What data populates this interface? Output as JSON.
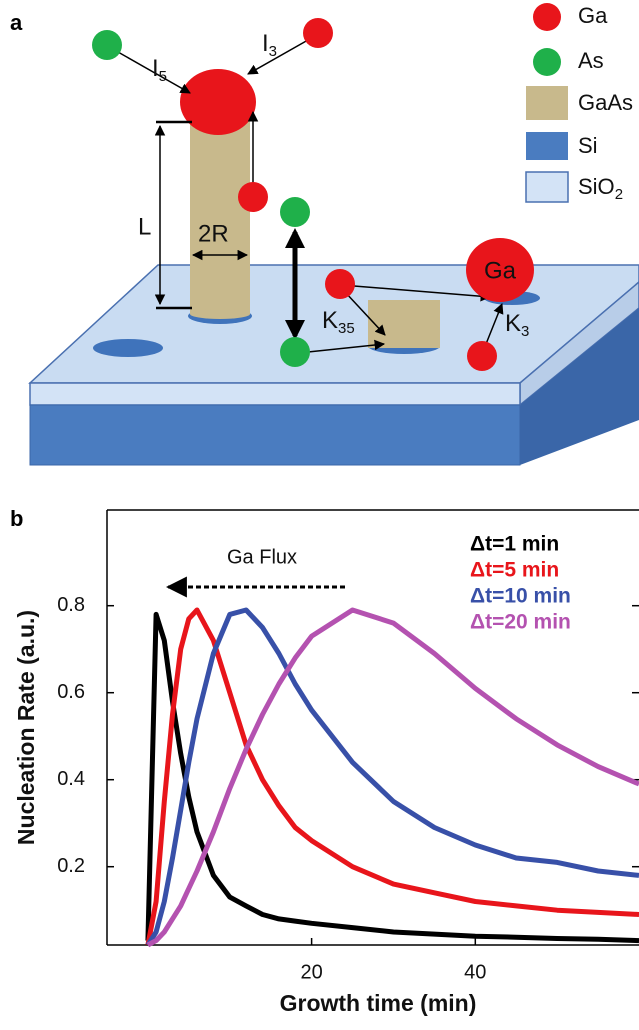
{
  "panels": [
    "a",
    "b"
  ],
  "diagram": {
    "legend": {
      "ga": "Ga",
      "as": "As",
      "gaas": "GaAs",
      "si": "Si",
      "sio2": [
        "SiO",
        "2"
      ]
    },
    "labels": {
      "i5": [
        "I",
        "5"
      ],
      "i3": [
        "I",
        "3"
      ],
      "l": "L",
      "r": "2R",
      "k35": [
        "K",
        "35"
      ],
      "k3": [
        "K",
        "3"
      ],
      "ga": "Ga"
    }
  },
  "chart_data": {
    "type": "line",
    "xlabel": "Growth time (min)",
    "ylabel": "Nucleation Rate (a.u.)",
    "annotation": "Ga Flux",
    "x": [
      0,
      1,
      2,
      3,
      4,
      5,
      6,
      8,
      10,
      12,
      14,
      16,
      18,
      20,
      25,
      30,
      35,
      40,
      45,
      50,
      55,
      60
    ],
    "series": [
      {
        "name": "Δt=1 min",
        "color": "#000000",
        "values": [
          0.03,
          0.78,
          0.72,
          0.58,
          0.46,
          0.36,
          0.28,
          0.18,
          0.13,
          0.11,
          0.09,
          0.08,
          0.075,
          0.07,
          0.06,
          0.05,
          0.045,
          0.04,
          0.038,
          0.035,
          0.033,
          0.03
        ]
      },
      {
        "name": "Δt=5 min",
        "color": "#e8151b",
        "values": [
          0.02,
          0.12,
          0.35,
          0.55,
          0.7,
          0.77,
          0.79,
          0.72,
          0.6,
          0.48,
          0.4,
          0.34,
          0.29,
          0.26,
          0.2,
          0.16,
          0.14,
          0.12,
          0.11,
          0.1,
          0.095,
          0.09
        ]
      },
      {
        "name": "Δt=10 min",
        "color": "#3850a8",
        "values": [
          0.02,
          0.05,
          0.12,
          0.22,
          0.33,
          0.44,
          0.54,
          0.69,
          0.78,
          0.79,
          0.75,
          0.69,
          0.62,
          0.56,
          0.44,
          0.35,
          0.29,
          0.25,
          0.22,
          0.21,
          0.19,
          0.18
        ]
      },
      {
        "name": "Δt=20 min",
        "color": "#b452b0",
        "values": [
          0.02,
          0.03,
          0.05,
          0.08,
          0.11,
          0.15,
          0.19,
          0.28,
          0.38,
          0.47,
          0.55,
          0.62,
          0.68,
          0.73,
          0.79,
          0.76,
          0.69,
          0.61,
          0.54,
          0.48,
          0.43,
          0.39
        ]
      }
    ],
    "xlim": [
      -5,
      60
    ],
    "ylim": [
      0.02,
      1.02
    ],
    "xticks": [
      20,
      40
    ],
    "yticks": [
      0.2,
      0.4,
      0.6,
      0.8
    ],
    "legend": "upper right"
  }
}
